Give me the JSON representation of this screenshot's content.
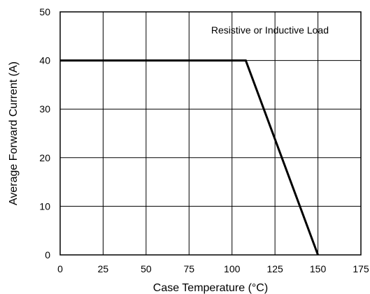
{
  "chart_data": {
    "type": "line",
    "title": "",
    "xlabel": "Case Temperature (°C)",
    "ylabel": "Average Forward Current (A)",
    "xlim": [
      0,
      175
    ],
    "ylim": [
      0,
      50
    ],
    "xticks": [
      0,
      25,
      50,
      75,
      100,
      125,
      150,
      175
    ],
    "yticks": [
      0,
      10,
      20,
      30,
      40,
      50
    ],
    "grid": true,
    "legend": "none",
    "annotation": "Resistive or Inductive Load",
    "series": [
      {
        "x": [
          0,
          108,
          150
        ],
        "y": [
          40,
          40,
          0
        ],
        "color": "#000000"
      }
    ]
  }
}
